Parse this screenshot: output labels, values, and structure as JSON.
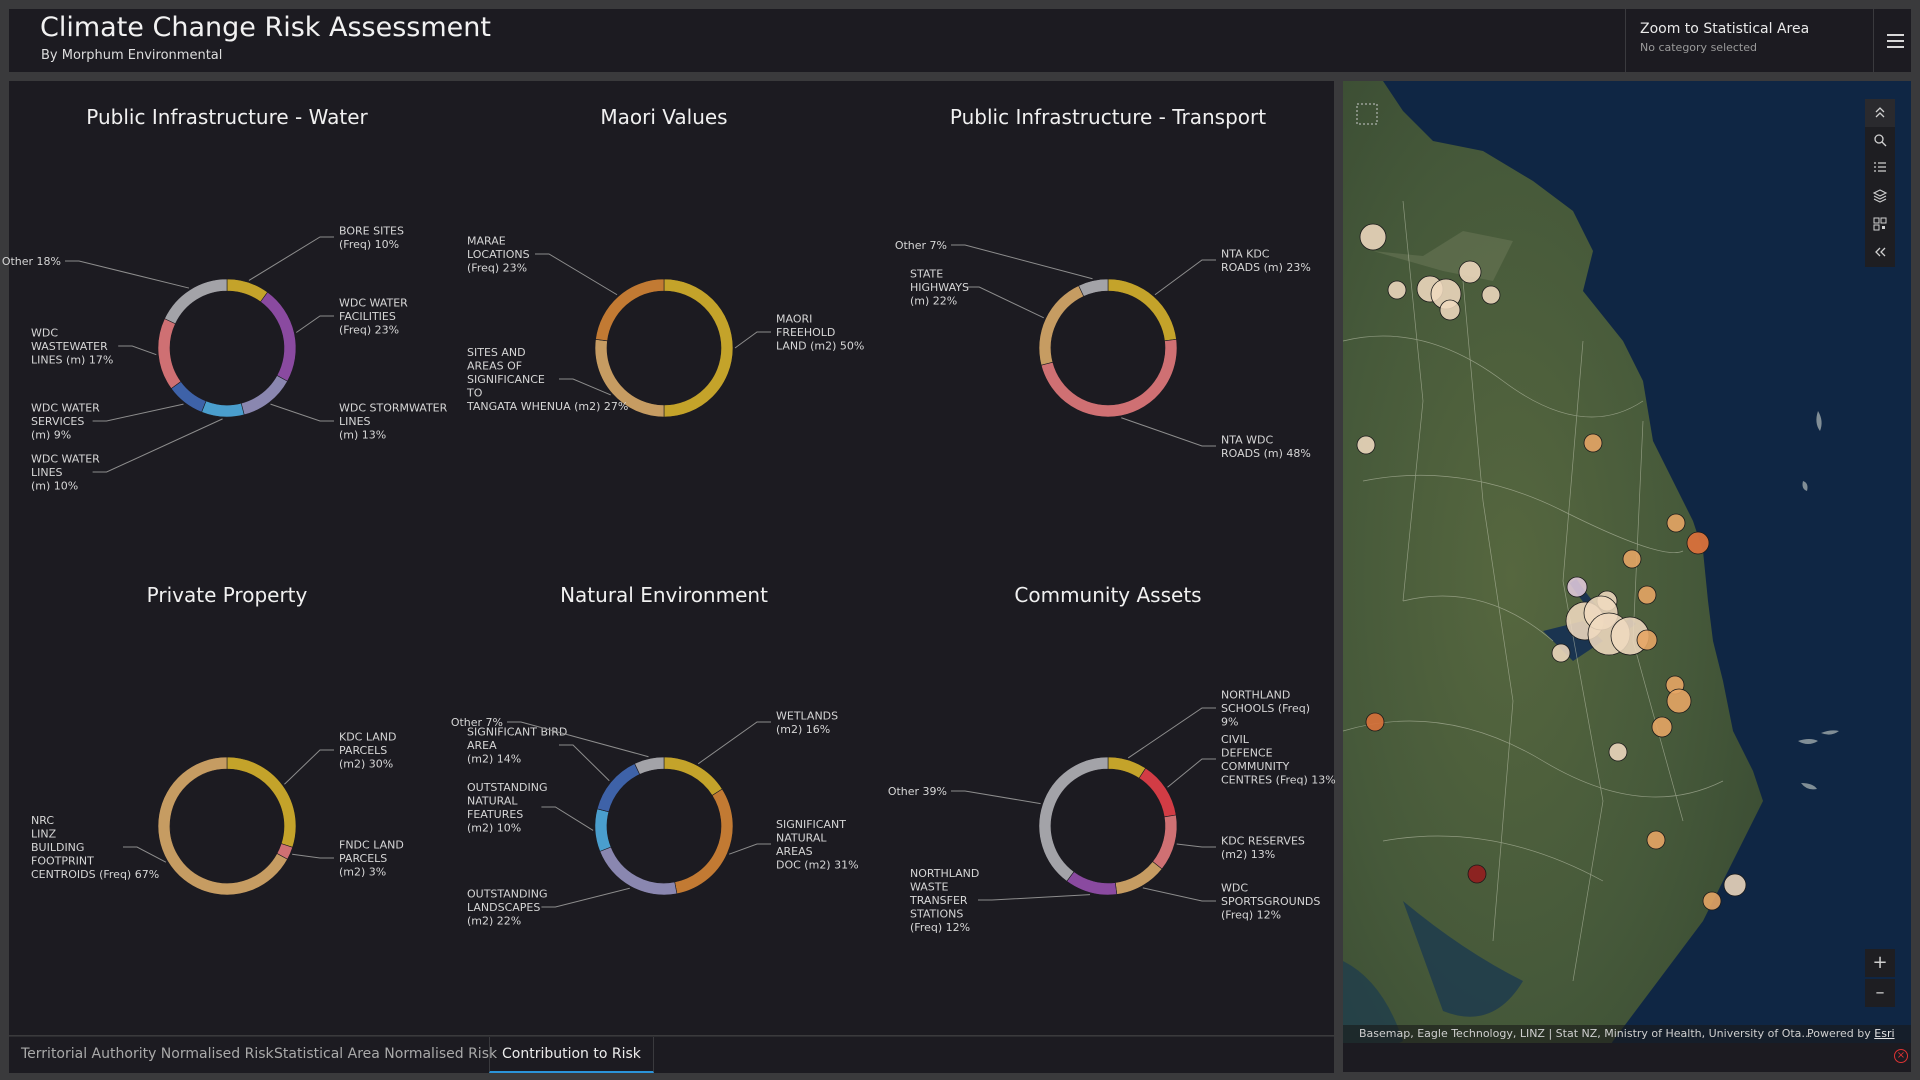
{
  "header": {
    "title": "Climate Change Risk Assessment",
    "subtitle": "By Morphum Environmental",
    "zoom_title": "Zoom to Statistical Area",
    "zoom_status": "No category selected"
  },
  "colors": {
    "gold": "#c4a32a",
    "purple": "#8a4aa0",
    "lavender": "#8a87b0",
    "sky": "#4a9ecd",
    "blue": "#3e62a8",
    "rose": "#cf7073",
    "grey": "#a3a3a8",
    "orange": "#c27a33",
    "tan": "#c69c62",
    "red": "#d23c45",
    "panel": "#1c1b21"
  },
  "charts": [
    {
      "title": "Public Infrastructure - Water",
      "slices": [
        {
          "label": "BORE SITES (Freq) 10%",
          "value": 10,
          "color": "#c4a32a"
        },
        {
          "label": "WDC WATER FACILITIES (Freq) 23%",
          "value": 23,
          "color": "#8a4aa0"
        },
        {
          "label": "WDC STORMWATER LINES (m) 13%",
          "value": 13,
          "color": "#8a87b0"
        },
        {
          "label": "WDC WATER LINES (m) 10%",
          "value": 10,
          "color": "#4a9ecd"
        },
        {
          "label": "WDC WATER SERVICES (m) 9%",
          "value": 9,
          "color": "#3e62a8"
        },
        {
          "label": "WDC WASTEWATER LINES (m) 17%",
          "value": 17,
          "color": "#cf7073"
        },
        {
          "label": "Other 18%",
          "value": 18,
          "color": "#a3a3a8"
        }
      ]
    },
    {
      "title": "Maori Values",
      "slices": [
        {
          "label": "MAORI FREEHOLD LAND (m2) 50%",
          "value": 50,
          "color": "#c4a32a"
        },
        {
          "label": "SITES AND AREAS OF SIGNIFICANCE TO TANGATA WHENUA (m2) 27%",
          "value": 27,
          "color": "#c69c62"
        },
        {
          "label": "MARAE LOCATIONS (Freq) 23%",
          "value": 23,
          "color": "#c27a33"
        }
      ]
    },
    {
      "title": "Public Infrastructure - Transport",
      "slices": [
        {
          "label": "NTA KDC ROADS (m) 23%",
          "value": 23,
          "color": "#c4a32a"
        },
        {
          "label": "NTA WDC ROADS (m) 48%",
          "value": 48,
          "color": "#cf7073"
        },
        {
          "label": "STATE HIGHWAYS (m) 22%",
          "value": 22,
          "color": "#c69c62"
        },
        {
          "label": "Other 7%",
          "value": 7,
          "color": "#a3a3a8"
        }
      ]
    },
    {
      "title": "Private Property",
      "slices": [
        {
          "label": "KDC LAND PARCELS (m2) 30%",
          "value": 30,
          "color": "#c4a32a"
        },
        {
          "label": "FNDC LAND PARCELS (m2) 3%",
          "value": 3,
          "color": "#cf7073"
        },
        {
          "label": "NRC LINZ BUILDING FOOTPRINT CENTROIDS (Freq) 67%",
          "value": 67,
          "color": "#c69c62"
        }
      ]
    },
    {
      "title": "Natural Environment",
      "slices": [
        {
          "label": "WETLANDS (m2) 16%",
          "value": 16,
          "color": "#c4a32a"
        },
        {
          "label": "SIGNIFICANT NATURAL AREAS DOC (m2) 31%",
          "value": 31,
          "color": "#c27a33"
        },
        {
          "label": "OUTSTANDING LANDSCAPES (m2) 22%",
          "value": 22,
          "color": "#8a87b0"
        },
        {
          "label": "OUTSTANDING NATURAL FEATURES (m2) 10%",
          "value": 10,
          "color": "#4a9ecd"
        },
        {
          "label": "SIGNIFICANT BIRD AREA (m2) 14%",
          "value": 14,
          "color": "#3e62a8"
        },
        {
          "label": "Other 7%",
          "value": 7,
          "color": "#a3a3a8"
        }
      ]
    },
    {
      "title": "Community Assets",
      "slices": [
        {
          "label": "NORTHLAND SCHOOLS (Freq) 9%",
          "value": 9,
          "color": "#c4a32a"
        },
        {
          "label": "CIVIL DEFENCE COMMUNITY CENTRES (Freq) 13%",
          "value": 13,
          "color": "#d23c45"
        },
        {
          "label": "KDC RESERVES (m2) 13%",
          "value": 13,
          "color": "#cf7073"
        },
        {
          "label": "WDC SPORTSGROUNDS (Freq) 12%",
          "value": 12,
          "color": "#c69c62"
        },
        {
          "label": "NORTHLAND WASTE TRANSFER STATIONS (Freq) 12%",
          "value": 12,
          "color": "#8a4aa0"
        },
        {
          "label": "Other 39%",
          "value": 39,
          "color": "#a3a3a8"
        }
      ]
    }
  ],
  "tabs": [
    {
      "label": "Territorial Authority Normalised Risk",
      "active": false
    },
    {
      "label": "Statistical Area Normalised Risk",
      "active": false
    },
    {
      "label": "Contribution to Risk",
      "active": true
    }
  ],
  "map": {
    "attribution": "Basemap, Eagle Technology, LINZ | Stat NZ, Ministry of Health, University of Ota…",
    "powered_by": "Powered by",
    "esri": "Esri",
    "tools": [
      "expand-icon",
      "search-icon",
      "legend-list-icon",
      "layers-icon",
      "qr-grid-icon",
      "collapse-icon"
    ],
    "zoom_in": "+",
    "zoom_out": "–"
  }
}
